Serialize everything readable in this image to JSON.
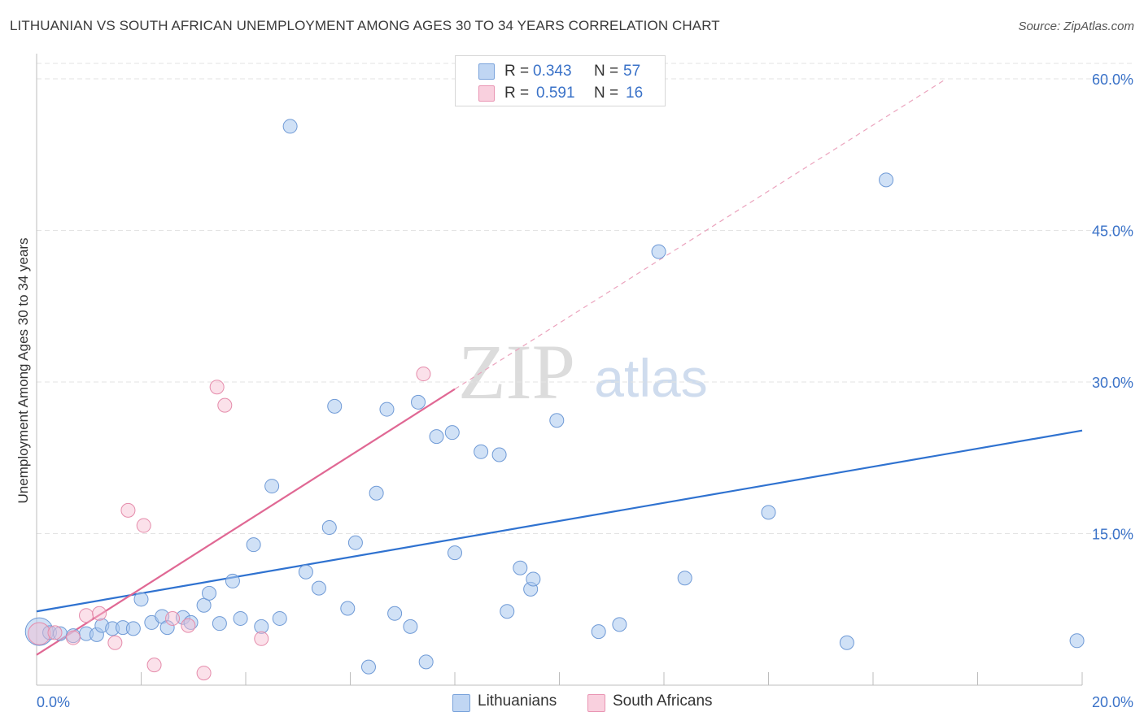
{
  "title": "LITHUANIAN VS SOUTH AFRICAN UNEMPLOYMENT AMONG AGES 30 TO 34 YEARS CORRELATION CHART",
  "source": "Source: ZipAtlas.com",
  "watermark": {
    "zip": "ZIP",
    "atlas": "atlas"
  },
  "colors": {
    "lithuanians_fill": "#a9c8ef",
    "lithuanians_line": "#2f72d0",
    "south_africans_fill": "#f6bcd0",
    "south_africans_line": "#e06894",
    "axis_text": "#3a72c8",
    "grid": "#e3e3e3"
  },
  "legend_top": [
    {
      "r_label": "R =",
      "r_value": "0.343",
      "n_label": "N =",
      "n_value": "57"
    },
    {
      "r_label": "R =",
      "r_value": "0.591",
      "n_label": "N =",
      "n_value": "16"
    }
  ],
  "legend_bottom": [
    "Lithuanians",
    "South Africans"
  ],
  "chart_data": {
    "type": "scatter",
    "title": "LITHUANIAN VS SOUTH AFRICAN UNEMPLOYMENT AMONG AGES 30 TO 34 YEARS CORRELATION CHART",
    "xlabel": "",
    "ylabel": "Unemployment Among Ages 30 to 34 years",
    "xlim": [
      0,
      20
    ],
    "ylim": [
      0,
      60
    ],
    "x_tick_labels": [
      "0.0%",
      "20.0%"
    ],
    "y_ticks": [
      15,
      30,
      45,
      60
    ],
    "y_tick_labels": [
      "15.0%",
      "30.0%",
      "45.0%",
      "60.0%"
    ],
    "grid": true,
    "legend_position": "top-center",
    "series": [
      {
        "name": "Lithuanians",
        "r": 0.343,
        "n": 57,
        "trend": {
          "x": [
            0,
            20
          ],
          "y": [
            7.3,
            25.2
          ]
        },
        "points": [
          [
            0.05,
            5.3,
            2.0
          ],
          [
            0.25,
            5.2,
            1
          ],
          [
            0.45,
            5.1,
            1
          ],
          [
            0.7,
            4.9,
            1
          ],
          [
            0.95,
            5.1,
            1
          ],
          [
            1.15,
            5.0,
            1
          ],
          [
            1.25,
            5.9,
            1
          ],
          [
            1.45,
            5.6,
            1
          ],
          [
            1.65,
            5.7,
            1
          ],
          [
            1.85,
            5.6,
            1
          ],
          [
            2.0,
            8.5,
            1
          ],
          [
            2.2,
            6.2,
            1
          ],
          [
            2.4,
            6.8,
            1
          ],
          [
            2.5,
            5.7,
            1
          ],
          [
            2.8,
            6.7,
            1
          ],
          [
            2.95,
            6.2,
            1
          ],
          [
            3.2,
            7.9,
            1
          ],
          [
            3.3,
            9.1,
            1
          ],
          [
            3.5,
            6.1,
            1
          ],
          [
            3.75,
            10.3,
            1
          ],
          [
            3.9,
            6.6,
            1
          ],
          [
            4.15,
            13.9,
            1
          ],
          [
            4.3,
            5.8,
            1
          ],
          [
            4.5,
            19.7,
            1
          ],
          [
            4.65,
            6.6,
            1
          ],
          [
            4.85,
            55.3,
            1
          ],
          [
            5.15,
            11.2,
            1
          ],
          [
            5.4,
            9.6,
            1
          ],
          [
            5.6,
            15.6,
            1
          ],
          [
            5.7,
            27.6,
            1
          ],
          [
            5.95,
            7.6,
            1
          ],
          [
            6.1,
            14.1,
            1
          ],
          [
            6.35,
            1.8,
            1
          ],
          [
            6.5,
            19.0,
            1
          ],
          [
            6.7,
            27.3,
            1
          ],
          [
            6.85,
            7.1,
            1
          ],
          [
            7.15,
            5.8,
            1
          ],
          [
            7.3,
            28.0,
            1
          ],
          [
            7.45,
            2.3,
            1
          ],
          [
            7.65,
            24.6,
            1
          ],
          [
            7.95,
            25.0,
            1
          ],
          [
            8.0,
            13.1,
            1
          ],
          [
            8.5,
            23.1,
            1
          ],
          [
            8.85,
            22.8,
            1
          ],
          [
            9.0,
            7.3,
            1
          ],
          [
            9.25,
            11.6,
            1
          ],
          [
            9.45,
            9.5,
            1
          ],
          [
            9.5,
            10.5,
            1
          ],
          [
            9.95,
            26.2,
            1
          ],
          [
            10.75,
            5.3,
            1
          ],
          [
            11.15,
            6.0,
            1
          ],
          [
            11.9,
            42.9,
            1
          ],
          [
            12.4,
            10.6,
            1
          ],
          [
            14.0,
            17.1,
            1
          ],
          [
            15.5,
            4.2,
            1
          ],
          [
            16.25,
            50.0,
            1
          ],
          [
            19.9,
            4.4,
            1
          ]
        ]
      },
      {
        "name": "South Africans",
        "r": 0.591,
        "n": 16,
        "trend": {
          "x": [
            0,
            8.0
          ],
          "y": [
            3.0,
            29.3
          ]
        },
        "trend_extension": {
          "x": [
            8.0,
            17.4
          ],
          "y": [
            29.3,
            60.0
          ]
        },
        "points": [
          [
            0.05,
            5.1,
            1.6
          ],
          [
            0.35,
            5.2,
            1
          ],
          [
            0.7,
            4.7,
            1
          ],
          [
            0.95,
            6.9,
            1
          ],
          [
            1.2,
            7.1,
            1
          ],
          [
            1.5,
            4.2,
            1
          ],
          [
            1.75,
            17.3,
            1
          ],
          [
            2.05,
            15.8,
            1
          ],
          [
            2.25,
            2.0,
            1
          ],
          [
            2.6,
            6.6,
            1
          ],
          [
            2.9,
            5.9,
            1
          ],
          [
            3.2,
            1.2,
            1
          ],
          [
            3.45,
            29.5,
            1
          ],
          [
            3.6,
            27.7,
            1
          ],
          [
            4.3,
            4.6,
            1
          ],
          [
            7.4,
            30.8,
            1
          ]
        ]
      }
    ]
  }
}
